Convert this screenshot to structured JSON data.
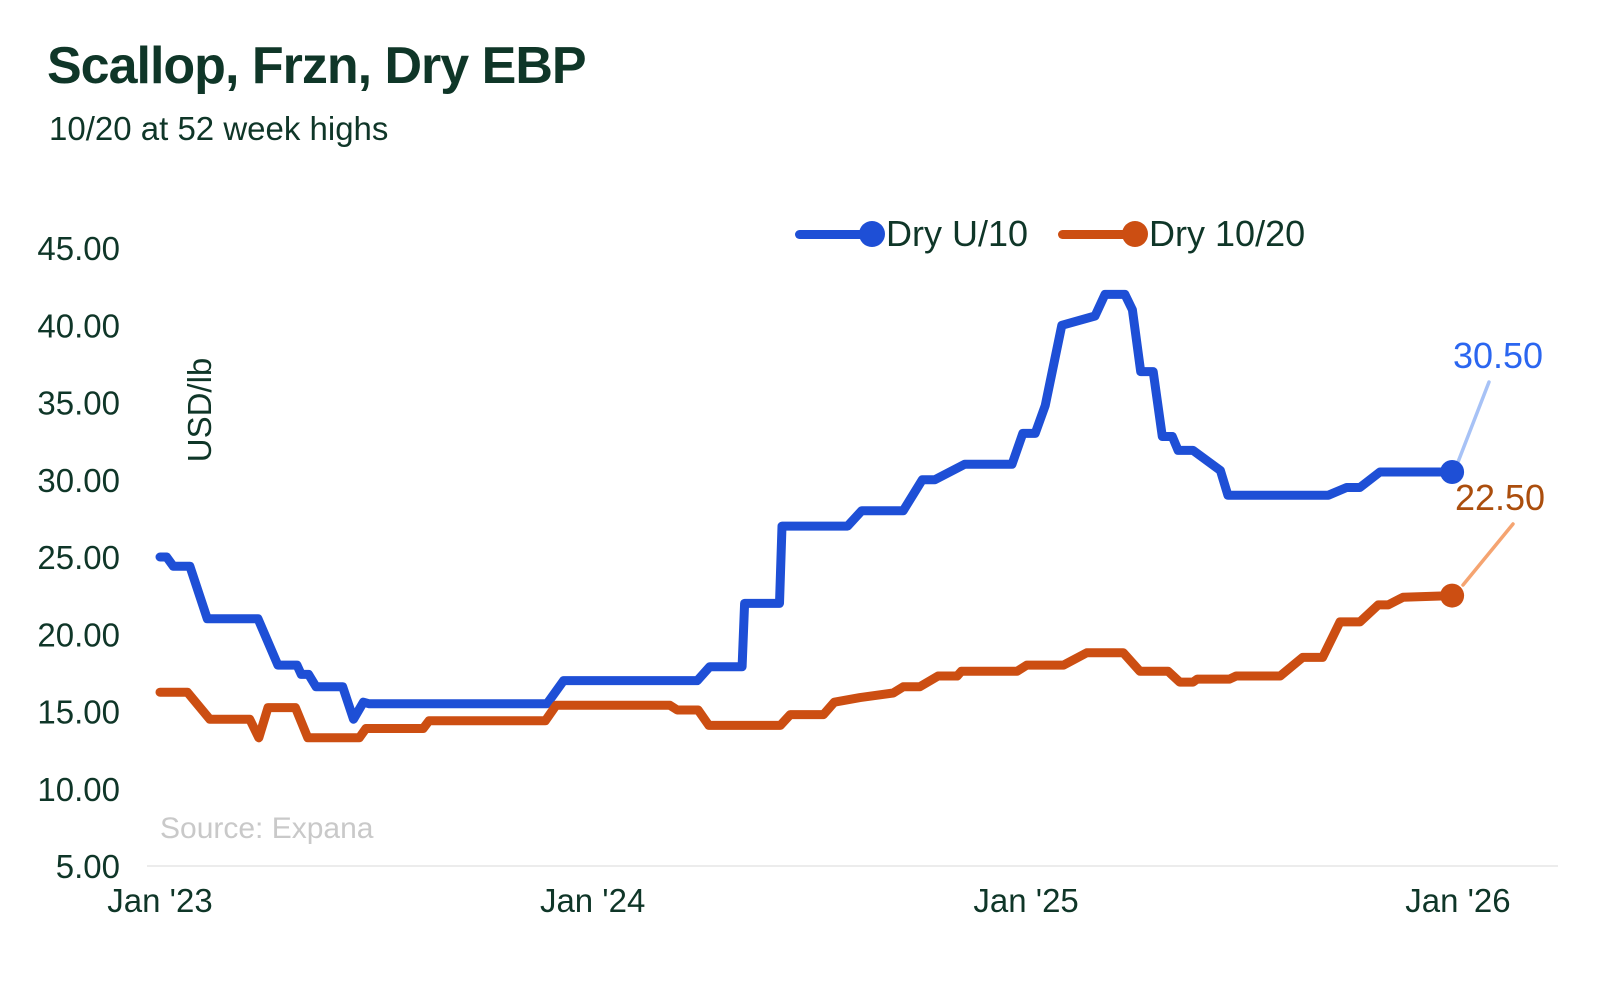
{
  "theme": {
    "background": "#ffffff",
    "text_color": "#0f3628",
    "muted_text_color": "#c9c9c9",
    "axis_line_color": "#ececec"
  },
  "header": {
    "title": "Scallop, Frzn, Dry EBP",
    "subtitle": "10/20 at 52 week highs"
  },
  "chart_data": {
    "type": "line",
    "title": "Scallop, Frzn, Dry EBP",
    "subtitle": "10/20 at 52 week highs",
    "ylabel": "USD/lb",
    "ylim": [
      5,
      45
    ],
    "y_ticks": [
      45,
      40,
      35,
      30,
      25,
      20,
      15,
      10,
      5
    ],
    "x_unit": "weeks since Jan 2023",
    "xlim": [
      0,
      156.3
    ],
    "x_ticks": [
      {
        "week": 0,
        "label": "Jan '23"
      },
      {
        "week": 52.1,
        "label": "Jan '24"
      },
      {
        "week": 104.3,
        "label": "Jan '25"
      },
      {
        "week": 156.3,
        "label": "Jan '26"
      }
    ],
    "grid": "bottom-baseline-only",
    "legend_position": "top-right",
    "source": "Source: Expana",
    "series": [
      {
        "name": "Dry U/10",
        "color": "#1e4fd6",
        "last_label": "30.50",
        "last_value": 30.5,
        "label_color": "#2b66f0",
        "connector_color": "#a7c2f6",
        "points": [
          [
            0,
            25
          ],
          [
            0.8,
            25
          ],
          [
            1.6,
            24.4
          ],
          [
            3.6,
            24.4
          ],
          [
            5.7,
            21
          ],
          [
            11.8,
            21
          ],
          [
            14.2,
            18
          ],
          [
            16.5,
            18
          ],
          [
            17,
            17.4
          ],
          [
            17.9,
            17.4
          ],
          [
            18.8,
            16.6
          ],
          [
            22,
            16.6
          ],
          [
            23.3,
            14.5
          ],
          [
            24.5,
            15.6
          ],
          [
            25.2,
            15.5
          ],
          [
            46.6,
            15.5
          ],
          [
            48.6,
            17
          ],
          [
            64.7,
            17
          ],
          [
            66.2,
            17.9
          ],
          [
            70.1,
            17.9
          ],
          [
            70.4,
            22
          ],
          [
            74.6,
            22
          ],
          [
            74.9,
            27
          ],
          [
            82.8,
            27
          ],
          [
            84.5,
            28
          ],
          [
            89.5,
            28
          ],
          [
            91.8,
            30
          ],
          [
            93.3,
            30
          ],
          [
            96.9,
            31
          ],
          [
            102.6,
            31
          ],
          [
            103.9,
            33
          ],
          [
            105.4,
            33
          ],
          [
            106.6,
            34.8
          ],
          [
            108.6,
            40
          ],
          [
            112.6,
            40.6
          ],
          [
            113.8,
            42
          ],
          [
            116.2,
            42
          ],
          [
            117.1,
            41
          ],
          [
            118.1,
            37
          ],
          [
            119.6,
            37
          ],
          [
            120.7,
            32.8
          ],
          [
            121.9,
            32.8
          ],
          [
            122.6,
            31.9
          ],
          [
            124.4,
            31.9
          ],
          [
            127.7,
            30.6
          ],
          [
            128.6,
            29
          ],
          [
            140.7,
            29
          ],
          [
            142.9,
            29.5
          ],
          [
            144.5,
            29.5
          ],
          [
            146.9,
            30.5
          ],
          [
            155.6,
            30.5
          ]
        ]
      },
      {
        "name": "Dry 10/20",
        "color": "#cc4e12",
        "last_label": "22.50",
        "last_value": 22.5,
        "label_color": "#ab4e0d",
        "connector_color": "#f5a471",
        "points": [
          [
            0,
            16.25
          ],
          [
            3.3,
            16.25
          ],
          [
            6,
            14.5
          ],
          [
            10.8,
            14.5
          ],
          [
            11.9,
            13.3
          ],
          [
            13,
            15.25
          ],
          [
            16.3,
            15.25
          ],
          [
            17.8,
            13.3
          ],
          [
            24,
            13.3
          ],
          [
            24.8,
            13.9
          ],
          [
            31.7,
            13.9
          ],
          [
            32.4,
            14.4
          ],
          [
            46.4,
            14.4
          ],
          [
            47.7,
            15.4
          ],
          [
            61.4,
            15.4
          ],
          [
            62.3,
            15.1
          ],
          [
            64.8,
            15.1
          ],
          [
            66.1,
            14.1
          ],
          [
            74.7,
            14.1
          ],
          [
            75.9,
            14.8
          ],
          [
            79.9,
            14.8
          ],
          [
            81.2,
            15.6
          ],
          [
            84.3,
            15.9
          ],
          [
            88.3,
            16.2
          ],
          [
            89.5,
            16.6
          ],
          [
            91.5,
            16.6
          ],
          [
            93.7,
            17.3
          ],
          [
            96,
            17.3
          ],
          [
            96.5,
            17.6
          ],
          [
            103.2,
            17.6
          ],
          [
            104.4,
            18
          ],
          [
            108.8,
            18
          ],
          [
            111.6,
            18.8
          ],
          [
            116,
            18.8
          ],
          [
            118,
            17.6
          ],
          [
            121.4,
            17.6
          ],
          [
            122.8,
            16.9
          ],
          [
            124.4,
            16.9
          ],
          [
            124.9,
            17.1
          ],
          [
            128.8,
            17.1
          ],
          [
            129.6,
            17.3
          ],
          [
            134.9,
            17.3
          ],
          [
            137.6,
            18.5
          ],
          [
            140,
            18.5
          ],
          [
            142.1,
            20.8
          ],
          [
            144.5,
            20.8
          ],
          [
            146.7,
            21.9
          ],
          [
            147.9,
            21.9
          ],
          [
            149.7,
            22.4
          ],
          [
            155.6,
            22.5
          ]
        ]
      }
    ]
  }
}
